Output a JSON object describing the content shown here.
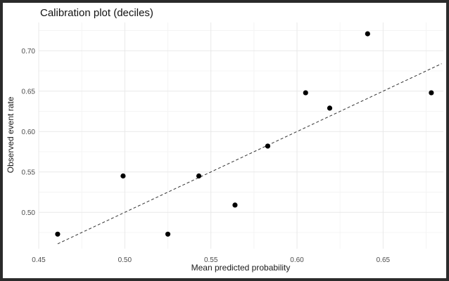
{
  "chart_data": {
    "type": "scatter",
    "title": "Calibration plot (deciles)",
    "xlabel": "Mean predicted probability",
    "ylabel": "Observed event rate",
    "xlim": [
      0.45,
      0.685
    ],
    "ylim": [
      0.455,
      0.735
    ],
    "x_ticks": [
      0.45,
      0.5,
      0.55,
      0.6,
      0.65
    ],
    "x_tick_labels": [
      "0.45",
      "0.50",
      "0.55",
      "0.60",
      "0.65"
    ],
    "y_ticks": [
      0.5,
      0.55,
      0.6,
      0.65,
      0.7
    ],
    "y_tick_labels": [
      "0.50",
      "0.55",
      "0.60",
      "0.65",
      "0.70"
    ],
    "grid": true,
    "points": [
      {
        "x": 0.461,
        "y": 0.473
      },
      {
        "x": 0.499,
        "y": 0.545
      },
      {
        "x": 0.525,
        "y": 0.473
      },
      {
        "x": 0.543,
        "y": 0.545
      },
      {
        "x": 0.564,
        "y": 0.509
      },
      {
        "x": 0.583,
        "y": 0.582
      },
      {
        "x": 0.605,
        "y": 0.648
      },
      {
        "x": 0.619,
        "y": 0.629
      },
      {
        "x": 0.641,
        "y": 0.721
      },
      {
        "x": 0.678,
        "y": 0.648
      }
    ],
    "reference_line": {
      "style": "dashed",
      "from": [
        0.461,
        0.461
      ],
      "to": [
        0.684,
        0.684
      ]
    }
  },
  "colors": {
    "point": "#000000",
    "grid_major": "#e8e8e8",
    "grid_minor": "#f4f4f4",
    "reference_line": "#333333"
  }
}
